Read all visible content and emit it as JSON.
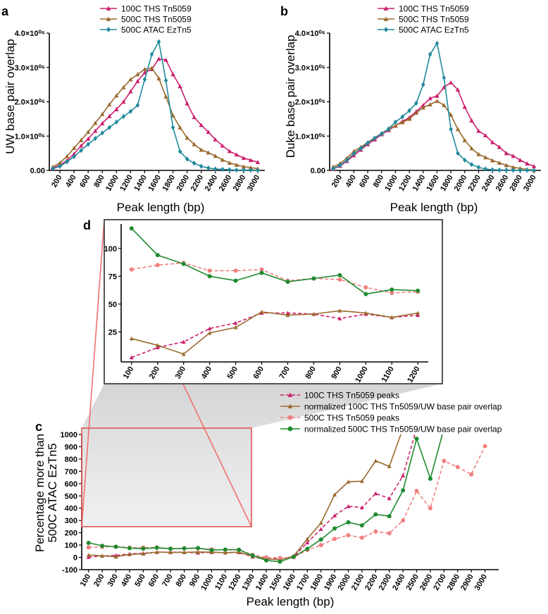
{
  "chart_data": [
    {
      "id": "a",
      "type": "line",
      "panel_label": "a",
      "xlabel": "Peak length (bp)",
      "ylabel": "UW base pair overlap",
      "x": [
        100,
        200,
        300,
        400,
        500,
        600,
        700,
        800,
        900,
        1000,
        1100,
        1200,
        1300,
        1400,
        1500,
        1600,
        1700,
        1800,
        1900,
        2000,
        2100,
        2200,
        2300,
        2400,
        2500,
        2600,
        2700,
        2800,
        2900,
        3000
      ],
      "x_ticks": [
        200,
        400,
        600,
        800,
        1000,
        1200,
        1400,
        1600,
        1800,
        2000,
        2200,
        2400,
        2600,
        2800,
        3000
      ],
      "xlim": [
        50,
        3100
      ],
      "ylim": [
        0,
        4000000
      ],
      "y_ticks": [
        {
          "v": 0,
          "label": "0.00"
        },
        {
          "v": 1000000,
          "label": "1.0×10⁰⁶"
        },
        {
          "v": 2000000,
          "label": "2.0×10⁰⁶"
        },
        {
          "v": 3000000,
          "label": "3.0×10⁰⁶"
        },
        {
          "v": 4000000,
          "label": "4.0×10⁰⁶"
        }
      ],
      "legend_position": "top-center",
      "series": [
        {
          "name": "100C THS Tn5059",
          "color": "#cc1f6e",
          "marker": "triangle",
          "dashed": false,
          "values": [
            60000,
            160000,
            290000,
            480000,
            720000,
            920000,
            1150000,
            1370000,
            1580000,
            1780000,
            2000000,
            2300000,
            2600000,
            2850000,
            2950000,
            3250000,
            3220000,
            2800000,
            2450000,
            1950000,
            1550000,
            1320000,
            1120000,
            900000,
            720000,
            560000,
            460000,
            360000,
            300000,
            240000
          ]
        },
        {
          "name": "500C THS Tn5059",
          "color": "#9a6a2e",
          "marker": "triangle",
          "dashed": false,
          "values": [
            100000,
            220000,
            410000,
            650000,
            880000,
            1120000,
            1380000,
            1640000,
            1920000,
            2180000,
            2420000,
            2650000,
            2800000,
            2950000,
            2980000,
            2680000,
            2150000,
            1600000,
            1250000,
            950000,
            760000,
            600000,
            520000,
            420000,
            310000,
            220000,
            160000,
            110000,
            80000,
            50000
          ]
        },
        {
          "name": "500C ATAC EzTn5",
          "color": "#208a9c",
          "marker": "diamond",
          "dashed": false,
          "values": [
            50000,
            120000,
            250000,
            400000,
            580000,
            760000,
            930000,
            1090000,
            1250000,
            1410000,
            1570000,
            1720000,
            1900000,
            2650000,
            3380000,
            3750000,
            2620000,
            1250000,
            550000,
            330000,
            210000,
            120000,
            70000,
            40000,
            30000,
            20000,
            10000,
            10000,
            10000,
            5000
          ]
        }
      ]
    },
    {
      "id": "b",
      "type": "line",
      "panel_label": "b",
      "xlabel": "Peak length (bp)",
      "ylabel": "Duke base pair overlap",
      "x": [
        100,
        200,
        300,
        400,
        500,
        600,
        700,
        800,
        900,
        1000,
        1100,
        1200,
        1300,
        1400,
        1500,
        1600,
        1700,
        1800,
        1900,
        2000,
        2100,
        2200,
        2300,
        2400,
        2500,
        2600,
        2700,
        2800,
        2900,
        3000
      ],
      "x_ticks": [
        200,
        400,
        600,
        800,
        1000,
        1200,
        1400,
        1600,
        1800,
        2000,
        2200,
        2400,
        2600,
        2800,
        3000
      ],
      "xlim": [
        50,
        3100
      ],
      "ylim": [
        0,
        4000000
      ],
      "y_ticks": [
        {
          "v": 0,
          "label": "0.00"
        },
        {
          "v": 1000000,
          "label": "1.0×10⁰⁶"
        },
        {
          "v": 2000000,
          "label": "2.0×10⁰⁶"
        },
        {
          "v": 3000000,
          "label": "3.0×10⁰⁶"
        },
        {
          "v": 4000000,
          "label": "4.0×10⁰⁶"
        }
      ],
      "legend_position": "top-center",
      "series": [
        {
          "name": "100C THS Tn5059",
          "color": "#cc1f6e",
          "marker": "triangle",
          "dashed": false,
          "values": [
            40000,
            130000,
            270000,
            440000,
            600000,
            760000,
            900000,
            1050000,
            1170000,
            1300000,
            1430000,
            1540000,
            1720000,
            1900000,
            2100000,
            2170000,
            2420000,
            2560000,
            2350000,
            1850000,
            1450000,
            1150000,
            1020000,
            820000,
            680000,
            500000,
            420000,
            300000,
            200000,
            120000
          ]
        },
        {
          "name": "500C THS Tn5059",
          "color": "#9a6a2e",
          "marker": "triangle",
          "dashed": false,
          "values": [
            100000,
            200000,
            360000,
            560000,
            680000,
            820000,
            950000,
            1080000,
            1200000,
            1310000,
            1400000,
            1500000,
            1680000,
            1830000,
            1920000,
            2020000,
            1900000,
            1620000,
            1200000,
            880000,
            640000,
            470000,
            380000,
            290000,
            220000,
            150000,
            90000,
            60000,
            30000,
            10000
          ]
        },
        {
          "name": "500C ATAC EzTn5",
          "color": "#208a9c",
          "marker": "diamond",
          "dashed": false,
          "values": [
            50000,
            150000,
            300000,
            490000,
            640000,
            800000,
            940000,
            1070000,
            1210000,
            1410000,
            1560000,
            1740000,
            1960000,
            2500000,
            3380000,
            3700000,
            2700000,
            1200000,
            500000,
            300000,
            170000,
            90000,
            40000,
            20000,
            10000,
            10000,
            5000,
            5000,
            5000,
            5000
          ]
        }
      ]
    },
    {
      "id": "c",
      "type": "line",
      "panel_label": "c",
      "xlabel": "Peak length (bp)",
      "ylabel": [
        "Percentage more than",
        "500C ATAC EzTn5"
      ],
      "x": [
        100,
        200,
        300,
        400,
        500,
        600,
        700,
        800,
        900,
        1000,
        1100,
        1200,
        1300,
        1400,
        1500,
        1600,
        1700,
        1800,
        1900,
        2000,
        2100,
        2200,
        2300,
        2400,
        2500,
        2600,
        2700,
        2800,
        2900,
        3000
      ],
      "x_ticks": [
        100,
        200,
        300,
        400,
        500,
        600,
        700,
        800,
        900,
        1000,
        1100,
        1200,
        1300,
        1400,
        1500,
        1600,
        1700,
        1800,
        1900,
        2000,
        2100,
        2200,
        2300,
        2400,
        2500,
        2600,
        2700,
        2800,
        2900,
        3000
      ],
      "xlim": [
        50,
        3100
      ],
      "ylim": [
        -100,
        1000
      ],
      "y_ticks": [
        {
          "v": -100,
          "label": "-100"
        },
        {
          "v": 0,
          "label": "0"
        },
        {
          "v": 100,
          "label": "100"
        },
        {
          "v": 200,
          "label": "200"
        },
        {
          "v": 300,
          "label": "300"
        },
        {
          "v": 400,
          "label": "400"
        },
        {
          "v": 500,
          "label": "500"
        },
        {
          "v": 600,
          "label": "600"
        },
        {
          "v": 700,
          "label": "700"
        },
        {
          "v": 800,
          "label": "800"
        },
        {
          "v": 900,
          "label": "900"
        },
        {
          "v": 1000,
          "label": "1000"
        }
      ],
      "legend_position": "top-right",
      "zoom_range": {
        "x": [
          100,
          1200
        ],
        "y": [
          -30,
          125
        ]
      },
      "series": [
        {
          "name": "100C THS Tn5059 peaks",
          "color": "#cc1f6e",
          "marker": "triangle",
          "dashed": true,
          "values": [
            2,
            11,
            16,
            28,
            33,
            42,
            42,
            41,
            37,
            41,
            38,
            40,
            5,
            -15,
            -10,
            5,
            120,
            230,
            340,
            415,
            405,
            520,
            480,
            665,
            1050,
            null,
            null,
            null,
            null,
            null
          ]
        },
        {
          "name": "normalized 100C THS Tn5059/UW base pair overlap",
          "color": "#9a6a2e",
          "marker": "triangle",
          "dashed": false,
          "values": [
            19,
            13,
            5,
            24,
            29,
            43,
            40,
            41,
            44,
            42,
            38,
            42,
            10,
            -10,
            -20,
            10,
            150,
            280,
            510,
            615,
            620,
            785,
            740,
            1050,
            null,
            null,
            null,
            null,
            null,
            null
          ]
        },
        {
          "name": "500C THS Tn5059 peaks",
          "color": "#f08080",
          "marker": "circle",
          "dashed": true,
          "values": [
            81,
            85,
            87,
            80,
            80,
            81,
            71,
            73,
            72,
            65,
            60,
            61,
            20,
            0,
            -5,
            0,
            60,
            100,
            150,
            180,
            160,
            210,
            195,
            300,
            540,
            400,
            785,
            735,
            675,
            905
          ]
        },
        {
          "name": "normalized 500C THS Tn5059/UW base pair overlap",
          "color": "#1e8a2e",
          "marker": "circle",
          "dashed": false,
          "values": [
            118,
            94,
            86,
            75,
            71,
            78,
            70,
            73,
            76,
            59,
            63,
            62,
            15,
            -25,
            -35,
            5,
            70,
            145,
            235,
            285,
            260,
            350,
            335,
            545,
            965,
            640,
            1050,
            null,
            null,
            null
          ]
        }
      ]
    },
    {
      "id": "d",
      "type": "line",
      "panel_label": "d",
      "xlabel": "",
      "ylabel": "",
      "x": [
        100,
        200,
        300,
        400,
        500,
        600,
        700,
        800,
        900,
        1000,
        1100,
        1200
      ],
      "x_ticks": [
        100,
        200,
        300,
        400,
        500,
        600,
        700,
        800,
        900,
        1000,
        1100,
        1200
      ],
      "xlim": [
        60,
        1240
      ],
      "ylim": [
        -2,
        122
      ],
      "y_ticks": [
        {
          "v": 25,
          "label": "25"
        },
        {
          "v": 50,
          "label": "50"
        },
        {
          "v": 75,
          "label": "75"
        },
        {
          "v": 100,
          "label": "100"
        }
      ],
      "series": [
        {
          "name": "100C THS Tn5059 peaks",
          "color": "#cc1f6e",
          "marker": "triangle",
          "dashed": true,
          "values": [
            2,
            11,
            16,
            28,
            33,
            42,
            42,
            41,
            37,
            41,
            38,
            40
          ]
        },
        {
          "name": "normalized 100C THS Tn5059/UW base pair overlap",
          "color": "#9a6a2e",
          "marker": "triangle",
          "dashed": false,
          "values": [
            19,
            13,
            5,
            24,
            29,
            43,
            40,
            41,
            44,
            42,
            38,
            42
          ]
        },
        {
          "name": "500C THS Tn5059 peaks",
          "color": "#f08080",
          "marker": "circle",
          "dashed": true,
          "values": [
            81,
            85,
            87,
            80,
            80,
            81,
            71,
            73,
            72,
            65,
            60,
            61
          ]
        },
        {
          "name": "normalized 500C THS Tn5059/UW base pair overlap",
          "color": "#1e8a2e",
          "marker": "circle",
          "dashed": false,
          "values": [
            118,
            94,
            86,
            75,
            71,
            78,
            70,
            73,
            76,
            59,
            63,
            62
          ]
        }
      ]
    }
  ]
}
